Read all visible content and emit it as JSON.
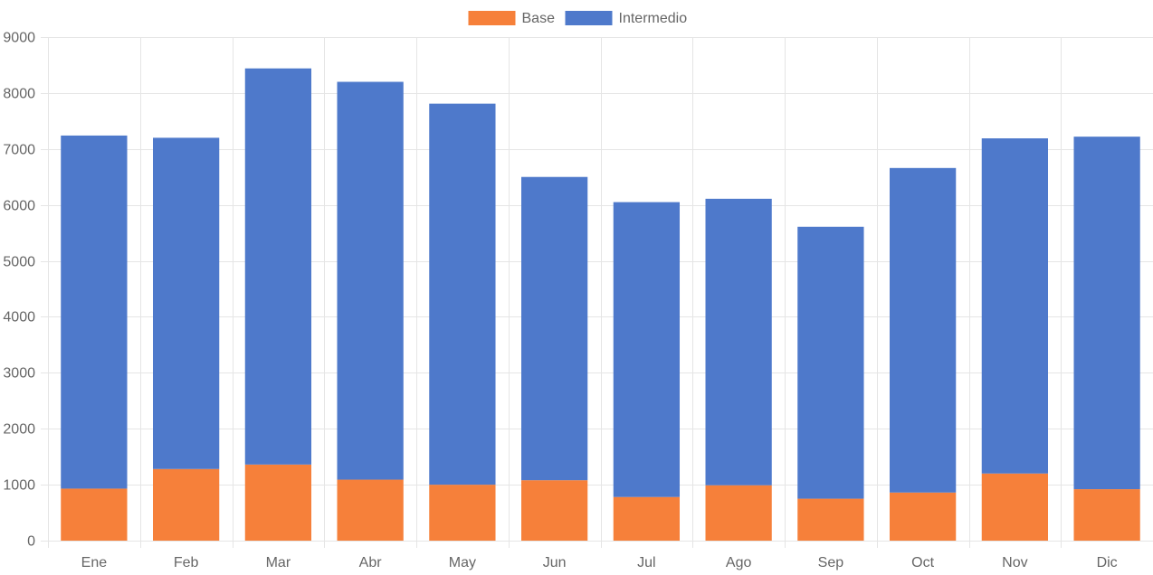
{
  "chart_data": {
    "type": "bar",
    "stacked": true,
    "categories": [
      "Ene",
      "Feb",
      "Mar",
      "Abr",
      "May",
      "Jun",
      "Jul",
      "Ago",
      "Sep",
      "Oct",
      "Nov",
      "Dic"
    ],
    "series": [
      {
        "name": "Base",
        "color": "#f6803a",
        "values": [
          930,
          1280,
          1360,
          1090,
          1000,
          1080,
          780,
          990,
          750,
          860,
          1200,
          920
        ]
      },
      {
        "name": "Intermedio",
        "color": "#4e79cb",
        "values": [
          6310,
          5920,
          7080,
          7110,
          6810,
          5420,
          5270,
          5120,
          4860,
          5800,
          5990,
          6300
        ]
      }
    ],
    "yticks": [
      "0",
      "1000",
      "2000",
      "3000",
      "4000",
      "5000",
      "6000",
      "7000",
      "8000",
      "9000"
    ],
    "ylim": [
      0,
      9000
    ],
    "grid": true,
    "legend": "top-center",
    "title": "",
    "xlabel": "",
    "ylabel": ""
  }
}
